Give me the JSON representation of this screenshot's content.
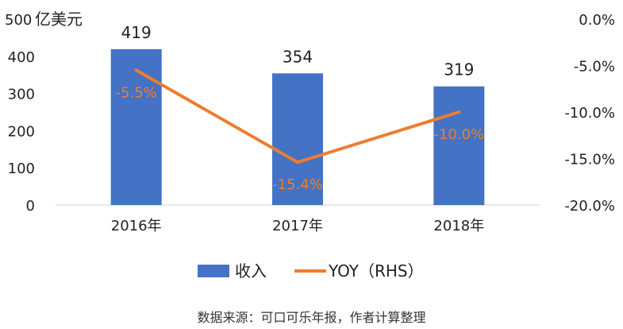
{
  "chart_data": {
    "type": "bar",
    "categories": [
      "2016年",
      "2017年",
      "2018年"
    ],
    "series": [
      {
        "name": "收入",
        "type": "bar",
        "axis": "left",
        "values": [
          419,
          354,
          319
        ],
        "data_labels": [
          "419",
          "354",
          "319"
        ],
        "color": "#4472C4"
      },
      {
        "name": "YOY（RHS）",
        "type": "line",
        "axis": "right",
        "values": [
          -5.5,
          -15.4,
          -10.0
        ],
        "data_labels": [
          "-5.5%",
          "-15.4%",
          "-10.0%"
        ],
        "color": "#ED7D31"
      }
    ],
    "y_left": {
      "unit_label": "亿美元",
      "ylim": [
        0,
        500
      ],
      "ticks": [
        "0",
        "100",
        "200",
        "300",
        "400",
        "500"
      ]
    },
    "y_right": {
      "ylim": [
        -20,
        0
      ],
      "ticks": [
        "-20.0%",
        "-15.0%",
        "-10.0%",
        "-5.0%",
        "0.0%"
      ]
    },
    "grid": false,
    "legend_position": "bottom"
  },
  "source_note": "数据来源：可口可乐年报，作者计算整理"
}
